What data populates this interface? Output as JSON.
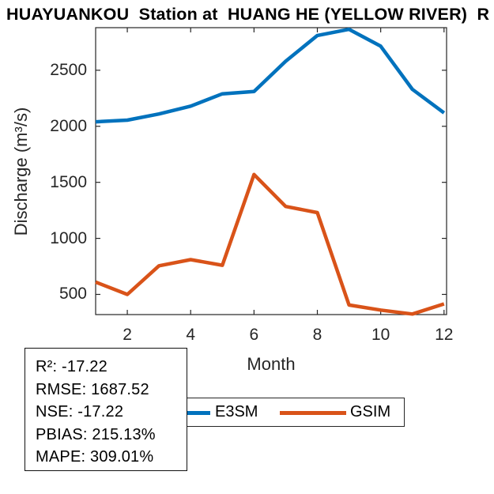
{
  "title": "HUAYUANKOU  Station at  HUANG HE (YELLOW RIVER)  R",
  "axes": {
    "xlabel": "Month",
    "ylabel": "Discharge (m³/s)"
  },
  "stats_box": {
    "lines": [
      "R²: -17.22",
      "RMSE: 1687.52",
      "NSE: -17.22",
      "PBIAS: 215.13%",
      "MAPE: 309.01%"
    ]
  },
  "legend": {
    "items": [
      {
        "label": "E3SM",
        "color": "#0072BD"
      },
      {
        "label": "GSIM",
        "color": "#D95319"
      }
    ]
  },
  "colors": {
    "axis": "#262626",
    "e3sm_blue": "#0072BD",
    "gsim_orange": "#D95319",
    "background": "#ffffff"
  },
  "chart_data": {
    "type": "line",
    "title": "HUAYUANKOU  Station at  HUANG HE (YELLOW RIVER)  R",
    "xlabel": "Month",
    "ylabel": "Discharge (m³/s)",
    "x": [
      1,
      2,
      3,
      4,
      5,
      6,
      7,
      8,
      9,
      10,
      11,
      12
    ],
    "series": [
      {
        "name": "E3SM",
        "color": "#0072BD",
        "values": [
          2040,
          2055,
          2110,
          2180,
          2290,
          2310,
          2580,
          2810,
          2865,
          2715,
          2330,
          2120
        ]
      },
      {
        "name": "GSIM",
        "color": "#D95319",
        "values": [
          610,
          500,
          755,
          810,
          760,
          1570,
          1285,
          1230,
          405,
          360,
          325,
          415
        ]
      }
    ],
    "xlim": [
      1,
      12.08
    ],
    "ylim": [
      320,
      2880
    ],
    "x_ticks": [
      2,
      4,
      6,
      8,
      10,
      12
    ],
    "x_tick_labels": [
      "2",
      "4",
      "6",
      "8",
      "10",
      "12"
    ],
    "y_ticks": [
      500,
      1000,
      1500,
      2000,
      2500
    ],
    "y_tick_labels": [
      "500",
      "1000",
      "1500",
      "2000",
      "2500"
    ],
    "grid": false,
    "legend_position": "below-axes",
    "line_width": 4.5
  }
}
